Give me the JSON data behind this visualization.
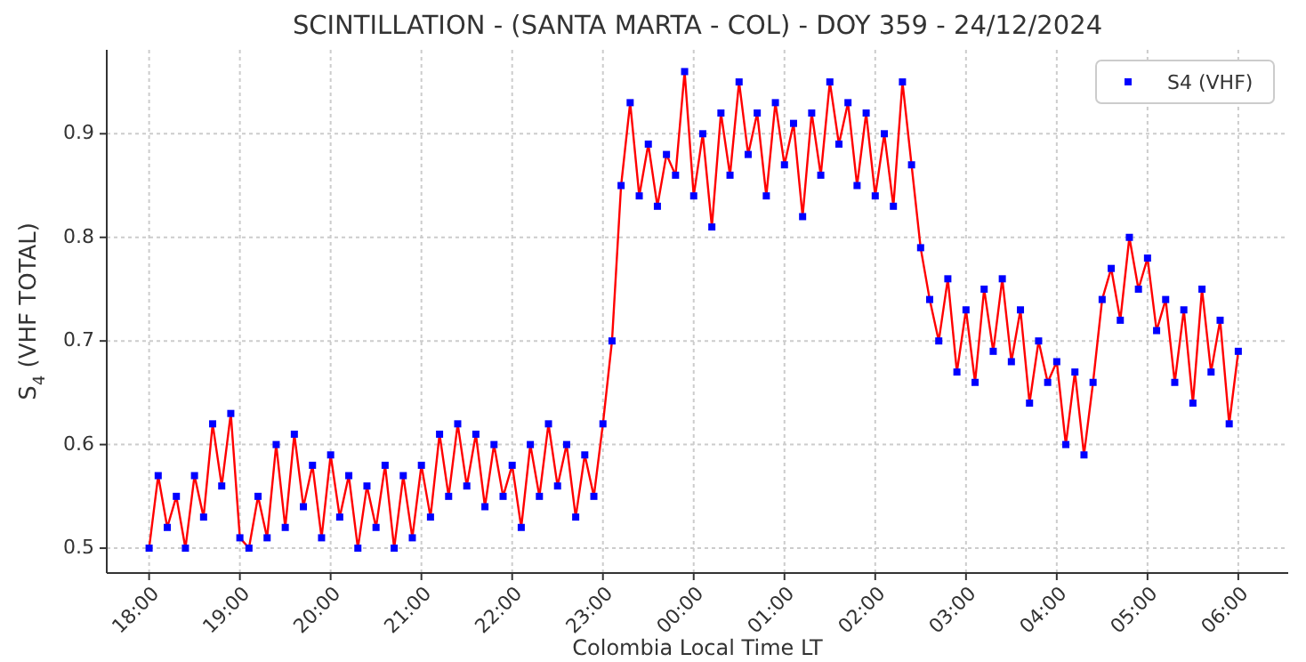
{
  "chart_data": {
    "type": "line",
    "title": "SCINTILLATION - (SANTA MARTA - COL) - DOY 359 - 24/12/2024",
    "xlabel": "Colombia Local Time LT",
    "ylabel": "S$_{4}$ (VHF TOTAL)",
    "x": [
      "2024-12-24T18:00",
      "2024-12-24T18:06",
      "2024-12-24T18:12",
      "2024-12-24T18:18",
      "2024-12-24T18:24",
      "2024-12-24T18:30",
      "2024-12-24T18:36",
      "2024-12-24T18:42",
      "2024-12-24T18:48",
      "2024-12-24T18:54",
      "2024-12-24T19:00",
      "2024-12-24T19:06",
      "2024-12-24T19:12",
      "2024-12-24T19:18",
      "2024-12-24T19:24",
      "2024-12-24T19:30",
      "2024-12-24T19:36",
      "2024-12-24T19:42",
      "2024-12-24T19:48",
      "2024-12-24T19:54",
      "2024-12-24T20:00",
      "2024-12-24T20:06",
      "2024-12-24T20:12",
      "2024-12-24T20:18",
      "2024-12-24T20:24",
      "2024-12-24T20:30",
      "2024-12-24T20:36",
      "2024-12-24T20:42",
      "2024-12-24T20:48",
      "2024-12-24T20:54",
      "2024-12-24T21:00",
      "2024-12-24T21:06",
      "2024-12-24T21:12",
      "2024-12-24T21:18",
      "2024-12-24T21:24",
      "2024-12-24T21:30",
      "2024-12-24T21:36",
      "2024-12-24T21:42",
      "2024-12-24T21:48",
      "2024-12-24T21:54",
      "2024-12-24T22:00",
      "2024-12-24T22:06",
      "2024-12-24T22:12",
      "2024-12-24T22:18",
      "2024-12-24T22:24",
      "2024-12-24T22:30",
      "2024-12-24T22:36",
      "2024-12-24T22:42",
      "2024-12-24T22:48",
      "2024-12-24T22:54",
      "2024-12-24T23:00",
      "2024-12-24T23:06",
      "2024-12-24T23:12",
      "2024-12-24T23:18",
      "2024-12-24T23:24",
      "2024-12-24T23:30",
      "2024-12-24T23:36",
      "2024-12-24T23:42",
      "2024-12-24T23:48",
      "2024-12-24T23:54",
      "2024-12-25T00:00",
      "2024-12-25T00:06",
      "2024-12-25T00:12",
      "2024-12-25T00:18",
      "2024-12-25T00:24",
      "2024-12-25T00:30",
      "2024-12-25T00:36",
      "2024-12-25T00:42",
      "2024-12-25T00:48",
      "2024-12-25T00:54",
      "2024-12-25T01:00",
      "2024-12-25T01:06",
      "2024-12-25T01:12",
      "2024-12-25T01:18",
      "2024-12-25T01:24",
      "2024-12-25T01:30",
      "2024-12-25T01:36",
      "2024-12-25T01:42",
      "2024-12-25T01:48",
      "2024-12-25T01:54",
      "2024-12-25T02:00",
      "2024-12-25T02:06",
      "2024-12-25T02:12",
      "2024-12-25T02:18",
      "2024-12-25T02:24",
      "2024-12-25T02:30",
      "2024-12-25T02:36",
      "2024-12-25T02:42",
      "2024-12-25T02:48",
      "2024-12-25T02:54",
      "2024-12-25T03:00",
      "2024-12-25T03:06",
      "2024-12-25T03:12",
      "2024-12-25T03:18",
      "2024-12-25T03:24",
      "2024-12-25T03:30",
      "2024-12-25T03:36",
      "2024-12-25T03:42",
      "2024-12-25T03:48",
      "2024-12-25T03:54",
      "2024-12-25T04:00",
      "2024-12-25T04:06",
      "2024-12-25T04:12",
      "2024-12-25T04:18",
      "2024-12-25T04:24",
      "2024-12-25T04:30",
      "2024-12-25T04:36",
      "2024-12-25T04:42",
      "2024-12-25T04:48",
      "2024-12-25T04:54",
      "2024-12-25T05:00",
      "2024-12-25T05:06",
      "2024-12-25T05:12",
      "2024-12-25T05:18",
      "2024-12-25T05:24",
      "2024-12-25T05:30",
      "2024-12-25T05:36",
      "2024-12-25T05:42",
      "2024-12-25T05:48",
      "2024-12-25T05:54",
      "2024-12-25T06:00"
    ],
    "series": [
      {
        "type": "line",
        "color": "#ff0000",
        "values": [
          0.5,
          0.57,
          0.52,
          0.55,
          0.5,
          0.57,
          0.53,
          0.62,
          0.56,
          0.63,
          0.51,
          0.5,
          0.55,
          0.51,
          0.6,
          0.52,
          0.61,
          0.54,
          0.58,
          0.51,
          0.59,
          0.53,
          0.57,
          0.5,
          0.56,
          0.52,
          0.58,
          0.5,
          0.57,
          0.51,
          0.58,
          0.53,
          0.61,
          0.55,
          0.62,
          0.56,
          0.61,
          0.54,
          0.6,
          0.55,
          0.58,
          0.52,
          0.6,
          0.55,
          0.62,
          0.56,
          0.6,
          0.53,
          0.59,
          0.55,
          0.62,
          0.7,
          0.85,
          0.93,
          0.84,
          0.89,
          0.83,
          0.88,
          0.86,
          0.96,
          0.84,
          0.9,
          0.81,
          0.92,
          0.86,
          0.95,
          0.88,
          0.92,
          0.84,
          0.93,
          0.87,
          0.91,
          0.82,
          0.92,
          0.86,
          0.95,
          0.89,
          0.93,
          0.85,
          0.92,
          0.84,
          0.9,
          0.83,
          0.95,
          0.87,
          0.79,
          0.74,
          0.7,
          0.76,
          0.67,
          0.73,
          0.66,
          0.75,
          0.69,
          0.76,
          0.68,
          0.73,
          0.64,
          0.7,
          0.66,
          0.68,
          0.6,
          0.67,
          0.59,
          0.66,
          0.74,
          0.77,
          0.72,
          0.8,
          0.75,
          0.78,
          0.71,
          0.74,
          0.66,
          0.73,
          0.64,
          0.75,
          0.67,
          0.72,
          0.62,
          0.69
        ]
      },
      {
        "type": "scatter",
        "name": "S4 (VHF)",
        "color": "#0000ff",
        "marker": "square",
        "values": [
          0.5,
          0.57,
          0.52,
          0.55,
          0.5,
          0.57,
          0.53,
          0.62,
          0.56,
          0.63,
          0.51,
          0.5,
          0.55,
          0.51,
          0.6,
          0.52,
          0.61,
          0.54,
          0.58,
          0.51,
          0.59,
          0.53,
          0.57,
          0.5,
          0.56,
          0.52,
          0.58,
          0.5,
          0.57,
          0.51,
          0.58,
          0.53,
          0.61,
          0.55,
          0.62,
          0.56,
          0.61,
          0.54,
          0.6,
          0.55,
          0.58,
          0.52,
          0.6,
          0.55,
          0.62,
          0.56,
          0.6,
          0.53,
          0.59,
          0.55,
          0.62,
          0.7,
          0.85,
          0.93,
          0.84,
          0.89,
          0.83,
          0.88,
          0.86,
          0.96,
          0.84,
          0.9,
          0.81,
          0.92,
          0.86,
          0.95,
          0.88,
          0.92,
          0.84,
          0.93,
          0.87,
          0.91,
          0.82,
          0.92,
          0.86,
          0.95,
          0.89,
          0.93,
          0.85,
          0.92,
          0.84,
          0.9,
          0.83,
          0.95,
          0.87,
          0.79,
          0.74,
          0.7,
          0.76,
          0.67,
          0.73,
          0.66,
          0.75,
          0.69,
          0.76,
          0.68,
          0.73,
          0.64,
          0.7,
          0.66,
          0.68,
          0.6,
          0.67,
          0.59,
          0.66,
          0.74,
          0.77,
          0.72,
          0.8,
          0.75,
          0.78,
          0.71,
          0.74,
          0.66,
          0.73,
          0.64,
          0.75,
          0.67,
          0.72,
          0.62,
          0.69
        ]
      }
    ],
    "xlim": [
      "2024-12-24T17:32",
      "2024-12-25T06:33"
    ],
    "ylim": [
      0.476,
      0.981
    ],
    "xticks": [
      {
        "value": "2024-12-24T18:00",
        "label": "18:00"
      },
      {
        "value": "2024-12-24T19:00",
        "label": "19:00"
      },
      {
        "value": "2024-12-24T20:00",
        "label": "20:00"
      },
      {
        "value": "2024-12-24T21:00",
        "label": "21:00"
      },
      {
        "value": "2024-12-24T22:00",
        "label": "22:00"
      },
      {
        "value": "2024-12-24T23:00",
        "label": "23:00"
      },
      {
        "value": "2024-12-25T00:00",
        "label": "00:00"
      },
      {
        "value": "2024-12-25T01:00",
        "label": "01:00"
      },
      {
        "value": "2024-12-25T02:00",
        "label": "02:00"
      },
      {
        "value": "2024-12-25T03:00",
        "label": "03:00"
      },
      {
        "value": "2024-12-25T04:00",
        "label": "04:00"
      },
      {
        "value": "2024-12-25T05:00",
        "label": "05:00"
      },
      {
        "value": "2024-12-25T06:00",
        "label": "06:00"
      }
    ],
    "yticks": [
      0.5,
      0.6,
      0.7,
      0.8,
      0.9
    ],
    "grid": true,
    "legend": "top right"
  }
}
